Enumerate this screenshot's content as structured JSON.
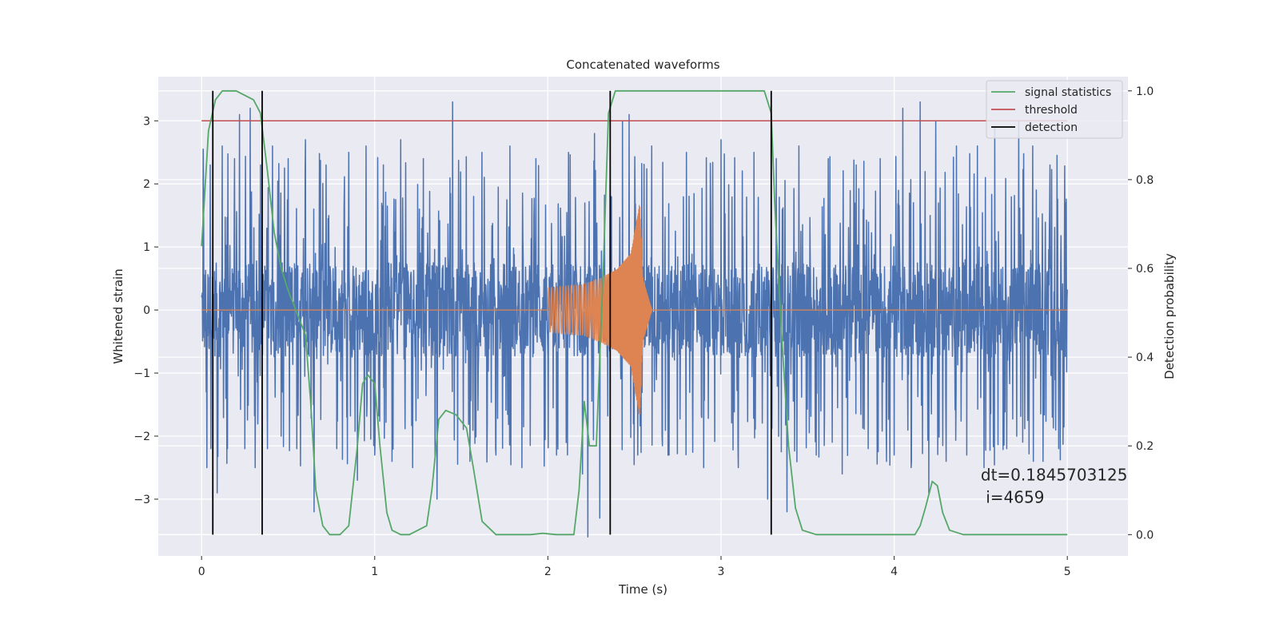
{
  "chart_data": {
    "type": "line",
    "title": "Concatenated waveforms",
    "xlabel": "Time (s)",
    "ylabel": "Whitened strain",
    "y2label": "Detection probability",
    "xlim": [
      -0.25,
      5.35
    ],
    "ylim": [
      -3.9,
      3.7
    ],
    "y2lim": [
      -0.048,
      1.032
    ],
    "xticks": [
      0,
      1,
      2,
      3,
      4,
      5
    ],
    "xtick_labels": [
      "0",
      "1",
      "2",
      "3",
      "4",
      "5"
    ],
    "yticks": [
      -3,
      -2,
      -1,
      0,
      1,
      2,
      3
    ],
    "ytick_labels": [
      "−3",
      "−2",
      "−1",
      "0",
      "1",
      "2",
      "3"
    ],
    "y2ticks": [
      0.0,
      0.2,
      0.4,
      0.6,
      0.8,
      1.0
    ],
    "y2tick_labels": [
      "0.0",
      "0.2",
      "0.4",
      "0.6",
      "0.8",
      "1.0"
    ],
    "grid": true,
    "background": "#eaeaf2",
    "legend_position": "top-right",
    "series": [
      {
        "name": "",
        "role": "whitened noisy strain",
        "axis": "left",
        "color": "#4c72b0",
        "x_range": [
          0,
          5
        ],
        "band_amplitude": 0.75,
        "spikes": [
          [
            0.01,
            2.55
          ],
          [
            0.03,
            -2.5
          ],
          [
            0.05,
            2.3
          ],
          [
            0.09,
            -2.9
          ],
          [
            0.12,
            2.6
          ],
          [
            0.15,
            -2.2
          ],
          [
            0.19,
            2.4
          ],
          [
            0.22,
            3.1
          ],
          [
            0.25,
            -2.2
          ],
          [
            0.28,
            3.2
          ],
          [
            0.31,
            -2.5
          ],
          [
            0.34,
            2.3
          ],
          [
            0.38,
            -2.2
          ],
          [
            0.41,
            2.6
          ],
          [
            0.46,
            -2.0
          ],
          [
            0.5,
            2.4
          ],
          [
            0.55,
            -2.2
          ],
          [
            0.6,
            2.7
          ],
          [
            0.65,
            -3.2
          ],
          [
            0.72,
            2.3
          ],
          [
            0.78,
            -2.2
          ],
          [
            0.85,
            2.5
          ],
          [
            0.9,
            -2.7
          ],
          [
            0.95,
            2.6
          ],
          [
            1.0,
            -2.3
          ],
          [
            1.05,
            2.3
          ],
          [
            1.1,
            -2.4
          ],
          [
            1.15,
            2.7
          ],
          [
            1.22,
            -2.5
          ],
          [
            1.28,
            2.4
          ],
          [
            1.36,
            -3.0
          ],
          [
            1.45,
            3.3
          ],
          [
            1.55,
            -2.4
          ],
          [
            1.62,
            2.5
          ],
          [
            1.7,
            -2.3
          ],
          [
            1.78,
            2.6
          ],
          [
            1.85,
            -2.5
          ],
          [
            1.93,
            2.4
          ],
          [
            2.05,
            -2.3
          ],
          [
            2.12,
            2.5
          ],
          [
            2.2,
            -2.6
          ],
          [
            2.23,
            -3.6
          ],
          [
            2.27,
            2.8
          ],
          [
            2.3,
            -3.3
          ],
          [
            2.36,
            2.3
          ],
          [
            2.43,
            3.0
          ],
          [
            2.47,
            3.1
          ],
          [
            2.52,
            -2.3
          ],
          [
            2.6,
            2.6
          ],
          [
            2.7,
            -2.3
          ],
          [
            2.8,
            2.5
          ],
          [
            2.9,
            -2.5
          ],
          [
            3.0,
            2.7
          ],
          [
            3.1,
            -2.5
          ],
          [
            3.19,
            2.5
          ],
          [
            3.27,
            -3.0
          ],
          [
            3.32,
            2.4
          ],
          [
            3.38,
            -3.2
          ],
          [
            3.45,
            2.6
          ],
          [
            3.55,
            -2.3
          ],
          [
            3.62,
            2.4
          ],
          [
            3.7,
            -2.6
          ],
          [
            3.78,
            2.3
          ],
          [
            3.85,
            -2.2
          ],
          [
            3.92,
            2.4
          ],
          [
            4.0,
            -2.3
          ],
          [
            4.05,
            3.2
          ],
          [
            4.1,
            -2.4
          ],
          [
            4.15,
            3.3
          ],
          [
            4.2,
            -2.9
          ],
          [
            4.24,
            3.0
          ],
          [
            4.3,
            -2.4
          ],
          [
            4.36,
            2.6
          ],
          [
            4.42,
            -2.3
          ],
          [
            4.48,
            2.6
          ],
          [
            4.52,
            -2.5
          ],
          [
            4.58,
            2.9
          ],
          [
            4.65,
            -2.2
          ],
          [
            4.72,
            3.0
          ],
          [
            4.8,
            2.6
          ],
          [
            4.86,
            -2.4
          ],
          [
            4.9,
            2.3
          ],
          [
            4.95,
            -2.2
          ],
          [
            4.99,
            1.7
          ]
        ]
      },
      {
        "name": "",
        "role": "injected chirp waveform",
        "axis": "left",
        "color": "#dd8452",
        "x_range": [
          2.0,
          2.6
        ],
        "peak_x": 2.54,
        "envelope": [
          [
            2.0,
            0.35
          ],
          [
            2.2,
            0.4
          ],
          [
            2.3,
            0.5
          ],
          [
            2.4,
            0.65
          ],
          [
            2.48,
            0.9
          ],
          [
            2.53,
            1.7
          ],
          [
            2.55,
            0.6
          ],
          [
            2.6,
            0.02
          ]
        ]
      },
      {
        "name": "signal statistics",
        "axis": "right",
        "color": "#55a868",
        "x": [
          0,
          0.04,
          0.08,
          0.12,
          0.2,
          0.3,
          0.34,
          0.38,
          0.42,
          0.46,
          0.5,
          0.55,
          0.6,
          0.63,
          0.66,
          0.7,
          0.74,
          0.8,
          0.85,
          0.9,
          0.93,
          0.96,
          1.0,
          1.03,
          1.07,
          1.1,
          1.15,
          1.2,
          1.3,
          1.33,
          1.37,
          1.41,
          1.47,
          1.53,
          1.57,
          1.62,
          1.7,
          1.9,
          1.97,
          2.05,
          2.15,
          2.18,
          2.21,
          2.24,
          2.28,
          2.32,
          2.35,
          2.39,
          2.5,
          3.25,
          3.29,
          3.31,
          3.35,
          3.39,
          3.43,
          3.47,
          3.55,
          4.0,
          4.12,
          4.15,
          4.18,
          4.22,
          4.25,
          4.28,
          4.32,
          4.4,
          5.0
        ],
        "y": [
          0.65,
          0.91,
          0.98,
          1.0,
          1.0,
          0.98,
          0.95,
          0.82,
          0.68,
          0.6,
          0.55,
          0.5,
          0.45,
          0.3,
          0.1,
          0.02,
          0.0,
          0.0,
          0.02,
          0.2,
          0.34,
          0.36,
          0.34,
          0.2,
          0.05,
          0.01,
          0.0,
          0.0,
          0.02,
          0.1,
          0.26,
          0.28,
          0.27,
          0.24,
          0.15,
          0.03,
          0.0,
          0.0,
          0.003,
          0.0,
          0.0,
          0.1,
          0.3,
          0.2,
          0.2,
          0.6,
          0.95,
          1.0,
          1.0,
          1.0,
          0.95,
          0.75,
          0.45,
          0.2,
          0.06,
          0.01,
          0.0,
          0.0,
          0.0,
          0.02,
          0.06,
          0.12,
          0.11,
          0.05,
          0.01,
          0.0,
          0.0
        ]
      },
      {
        "name": "threshold",
        "axis": "left",
        "color": "#c44e52",
        "x": [
          0,
          5
        ],
        "y": [
          3.0,
          3.0
        ]
      },
      {
        "name": "detection",
        "axis": "right",
        "color": "#000000",
        "type": "vlines",
        "x": [
          0.065,
          0.35,
          2.36,
          3.29
        ],
        "ymin": 0.0,
        "ymax": 1.0
      }
    ],
    "annotation": {
      "line1": "dt=0.1845703125",
      "line2": " i=4659",
      "x": 4.5,
      "y": -2.7
    }
  }
}
